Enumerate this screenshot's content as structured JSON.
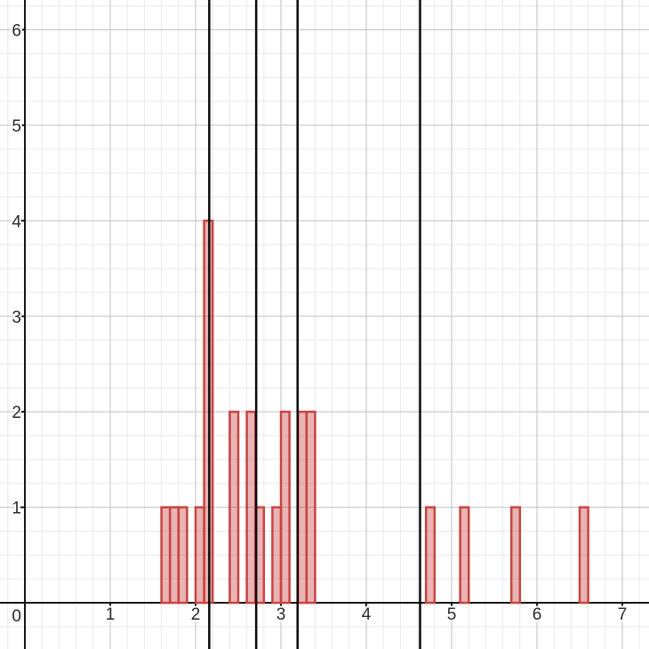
{
  "chart_data": {
    "type": "bar",
    "subtype": "histogram",
    "title": "",
    "xlabel": "",
    "ylabel": "",
    "x_range": [
      -0.2917,
      7.3125
    ],
    "y_range": [
      -0.4837,
      6.3116
    ],
    "x_major_step": 1,
    "x_minor_step": 0.2,
    "y_major_step": 1,
    "y_minor_step": 0.25,
    "grid": "on",
    "legend": "none",
    "x_tick_labels": [
      {
        "value": 1,
        "label": "1"
      },
      {
        "value": 2,
        "label": "2"
      },
      {
        "value": 3,
        "label": "3"
      },
      {
        "value": 4,
        "label": "4"
      },
      {
        "value": 5,
        "label": "5"
      },
      {
        "value": 6,
        "label": "6"
      },
      {
        "value": 7,
        "label": "7"
      }
    ],
    "y_tick_labels": [
      {
        "value": 1,
        "label": "1"
      },
      {
        "value": 2,
        "label": "2"
      },
      {
        "value": 3,
        "label": "3"
      },
      {
        "value": 4,
        "label": "4"
      },
      {
        "value": 5,
        "label": "5"
      },
      {
        "value": 6,
        "label": "6"
      }
    ],
    "origin_label": "0",
    "bin_width": 0.1,
    "bins": [
      {
        "x": 1.6,
        "count": 1
      },
      {
        "x": 1.7,
        "count": 1
      },
      {
        "x": 1.8,
        "count": 1
      },
      {
        "x": 2.0,
        "count": 1
      },
      {
        "x": 2.1,
        "count": 4
      },
      {
        "x": 2.4,
        "count": 2
      },
      {
        "x": 2.6,
        "count": 2
      },
      {
        "x": 2.7,
        "count": 1
      },
      {
        "x": 2.9,
        "count": 1
      },
      {
        "x": 3.0,
        "count": 2
      },
      {
        "x": 3.2,
        "count": 2
      },
      {
        "x": 3.3,
        "count": 2
      },
      {
        "x": 4.7,
        "count": 1
      },
      {
        "x": 5.1,
        "count": 1
      },
      {
        "x": 5.7,
        "count": 1
      },
      {
        "x": 6.5,
        "count": 1
      }
    ],
    "vertical_lines": [
      {
        "x": 2.16
      },
      {
        "x": 2.71
      },
      {
        "x": 3.195
      },
      {
        "x": 4.63
      }
    ],
    "colors": {
      "background": "#ffffff",
      "grid_minor": "#e9e9e9",
      "grid_major": "#c2c2c2",
      "axis": "#161616",
      "bar_fill": "rgba(199,68,64,0.4)",
      "bar_stroke": "#c74440",
      "vertical_line": "#0a0a0a",
      "label": "#2a2a2a"
    }
  }
}
